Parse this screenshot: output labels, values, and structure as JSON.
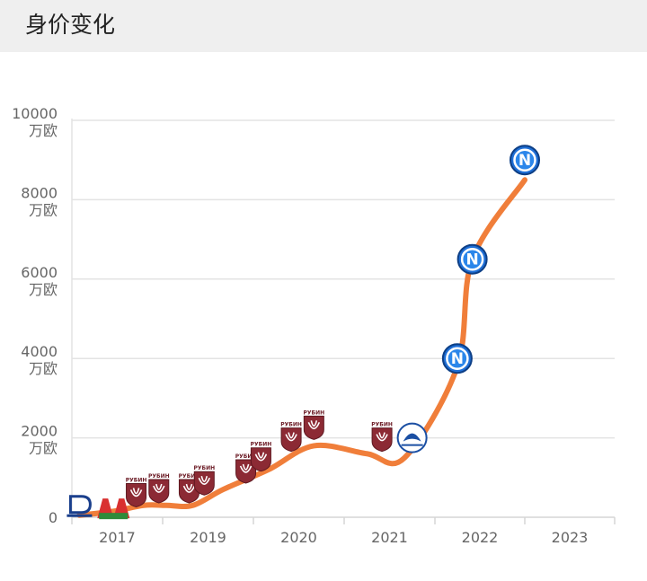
{
  "header": {
    "title": "身价变化"
  },
  "chart_data": {
    "type": "line",
    "title": "身价变化",
    "xlabel": "",
    "ylabel": "",
    "y_unit": "万欧",
    "ylim": [
      0,
      10000
    ],
    "y_ticks": [
      0,
      2000,
      4000,
      6000,
      8000,
      10000
    ],
    "x_ticks": [
      "2017",
      "2019",
      "2020",
      "2021",
      "2022",
      "2023"
    ],
    "grid": true,
    "series_color": "#f07e3a",
    "series": [
      {
        "points": [
          {
            "x": "2016-09",
            "y": 50
          },
          {
            "x": "2017-06",
            "y": 150
          },
          {
            "x": "2018-02",
            "y": 300
          },
          {
            "x": "2018-08",
            "y": 300
          },
          {
            "x": "2019-03",
            "y": 300
          },
          {
            "x": "2019-09",
            "y": 700
          },
          {
            "x": "2020-03",
            "y": 1200
          },
          {
            "x": "2020-09",
            "y": 1800
          },
          {
            "x": "2021-04",
            "y": 1600
          },
          {
            "x": "2021-09",
            "y": 1500
          },
          {
            "x": "2022-04",
            "y": 3800
          },
          {
            "x": "2022-06",
            "y": 6500
          },
          {
            "x": "2023-01",
            "y": 8500
          }
        ]
      }
    ],
    "club_markers": [
      {
        "club": "dinamo-minsk",
        "x": "2016-09",
        "y": 300,
        "icon": "dinamo-minsk-logo",
        "label": ""
      },
      {
        "club": "lokomotiv",
        "x": "2017-06",
        "y": 200,
        "icon": "lokomotiv-logo",
        "label": ""
      },
      {
        "club": "rubin",
        "x": "2017-12",
        "y": 600,
        "icon": "rubin-logo",
        "label": "РУБИН"
      },
      {
        "club": "rubin",
        "x": "2018-06",
        "y": 700,
        "icon": "rubin-logo",
        "label": "РУБИН"
      },
      {
        "club": "rubin",
        "x": "2019-02",
        "y": 700,
        "icon": "rubin-logo",
        "label": "РУБИН"
      },
      {
        "club": "rubin",
        "x": "2019-06",
        "y": 900,
        "icon": "rubin-logo",
        "label": "РУБИН"
      },
      {
        "club": "rubin",
        "x": "2019-12",
        "y": 1200,
        "icon": "rubin-logo",
        "label": "РУБИН"
      },
      {
        "club": "rubin",
        "x": "2020-02",
        "y": 1500,
        "icon": "rubin-logo",
        "label": "РУБИН"
      },
      {
        "club": "rubin",
        "x": "2020-06",
        "y": 2000,
        "icon": "rubin-logo",
        "label": "РУБИН"
      },
      {
        "club": "rubin",
        "x": "2020-09",
        "y": 2300,
        "icon": "rubin-logo",
        "label": "РУБИН"
      },
      {
        "club": "rubin",
        "x": "2021-06",
        "y": 2000,
        "icon": "rubin-logo",
        "label": "РУБИН"
      },
      {
        "club": "dinamo-batumi",
        "x": "2021-10",
        "y": 2000,
        "icon": "dinamo-batumi-logo",
        "label": ""
      },
      {
        "club": "napoli",
        "x": "2022-04",
        "y": 4000,
        "icon": "napoli-logo",
        "label": "N"
      },
      {
        "club": "napoli",
        "x": "2022-06",
        "y": 6500,
        "icon": "napoli-logo",
        "label": "N"
      },
      {
        "club": "napoli",
        "x": "2023-01",
        "y": 9000,
        "icon": "napoli-logo",
        "label": "N"
      }
    ]
  }
}
